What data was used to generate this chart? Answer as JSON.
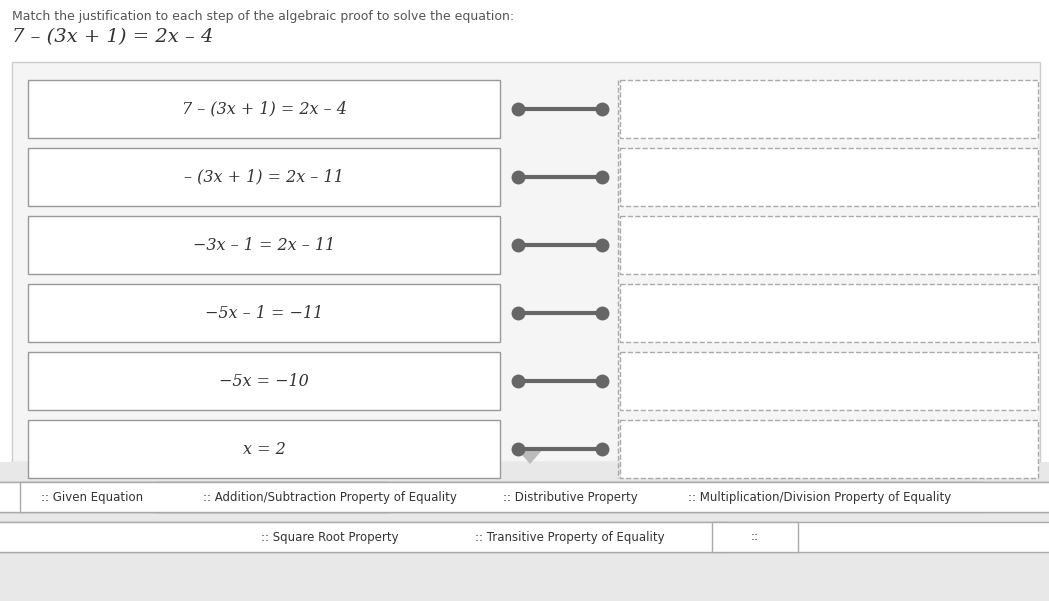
{
  "title": "Match the justification to each step of the algebraic proof to solve the equation:",
  "equation_display": "7 – (3x + 1) = 2x – 4",
  "steps": [
    "7 – (3x + 1) = 2x – 4",
    "– (3x + 1) = 2x – 11",
    "−3x – 1 = 2x – 11",
    "−5x – 1 = −11",
    "−5x = −10",
    "x = 2"
  ],
  "answer_labels_row1": [
    ":: Given Equation",
    ":: Addition/Subtraction Property of Equality",
    ":: Distributive Property",
    ":: Multiplication/Division Property of Equality"
  ],
  "answer_labels_row2": [
    ":: Square Root Property",
    ":: Transitive Property of Equality",
    "::"
  ],
  "bg_main": "#f5f5f5",
  "bg_bottom": "#e8e8e8",
  "box_border": "#999999",
  "dashed_border": "#aaaaaa",
  "connector_color": "#666666",
  "text_color": "#333333",
  "title_color": "#555555"
}
